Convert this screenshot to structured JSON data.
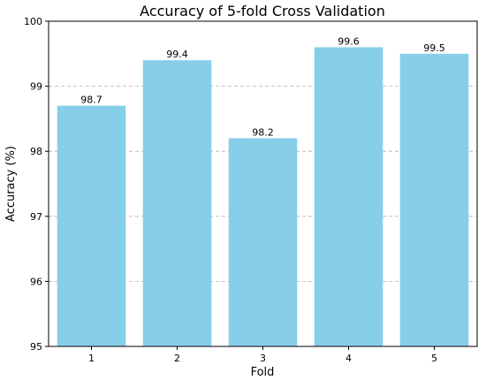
{
  "chart_data": {
    "type": "bar",
    "title": "Accuracy of 5-fold Cross Validation",
    "xlabel": "Fold",
    "ylabel": "Accuracy (%)",
    "categories": [
      "1",
      "2",
      "3",
      "4",
      "5"
    ],
    "values": [
      98.7,
      99.4,
      98.2,
      99.6,
      99.5
    ],
    "data_labels": [
      "98.7",
      "99.4",
      "98.2",
      "99.6",
      "99.5"
    ],
    "ylim": [
      95,
      100
    ],
    "yticks": [
      95,
      96,
      97,
      98,
      99,
      100
    ],
    "ytick_labels": [
      "95",
      "96",
      "97",
      "98",
      "99",
      "100"
    ],
    "grid": "y-axis dashed",
    "legend": "none",
    "bar_color": "#87ceeb"
  }
}
